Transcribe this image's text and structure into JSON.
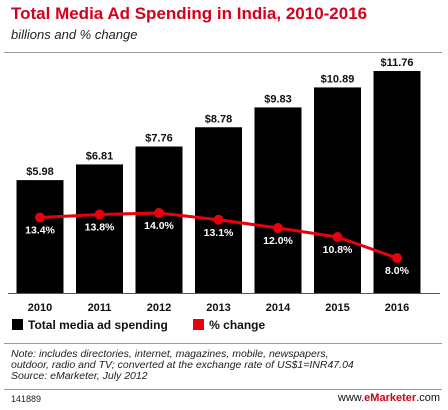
{
  "chart_data": {
    "type": "bar",
    "title": "Total Media Ad Spending in India, 2010-2016",
    "subtitle": "billions and % change",
    "categories": [
      "2010",
      "2011",
      "2012",
      "2013",
      "2014",
      "2015",
      "2016"
    ],
    "series": [
      {
        "name": "Total media ad spending",
        "type": "bar",
        "values": [
          5.98,
          6.81,
          7.76,
          8.78,
          9.83,
          10.89,
          11.76
        ],
        "labels": [
          "$5.98",
          "$6.81",
          "$7.76",
          "$8.78",
          "$9.83",
          "$10.89",
          "$11.76"
        ],
        "color": "#000000"
      },
      {
        "name": "% change",
        "type": "line",
        "values": [
          13.4,
          13.8,
          14.0,
          13.1,
          12.0,
          10.8,
          8.0
        ],
        "labels": [
          "13.4%",
          "13.8%",
          "14.0%",
          "13.1%",
          "12.0%",
          "10.8%",
          "8.0%"
        ],
        "color": "#e8000c"
      }
    ],
    "legend_position": "bottom-left",
    "grid": false
  },
  "notes": {
    "line1": "Note: includes directories, internet, magazines, mobile, newspapers,",
    "line2": "outdoor, radio and TV; converted at the exchange rate of US$1=INR47.04",
    "source": "Source: eMarketer, July 2012"
  },
  "footer": {
    "chart_id": "141889",
    "brand_prefix": "www.",
    "brand_name": "eMarketer",
    "brand_suffix": ".com"
  }
}
